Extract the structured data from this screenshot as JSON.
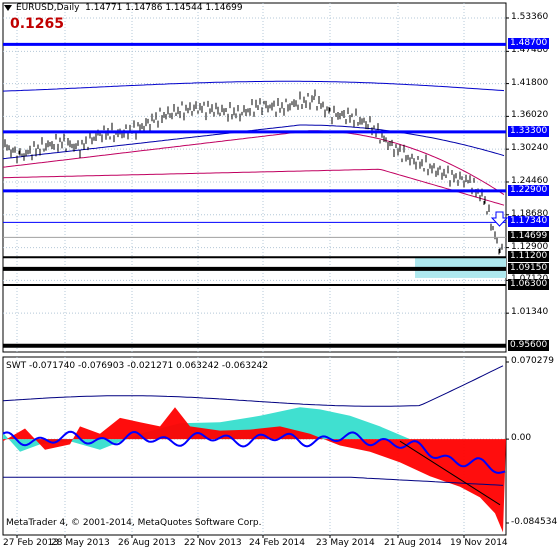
{
  "window": {
    "symbol_header": "EURUSD,Daily",
    "ohlc": [
      "1.14771",
      "1.14786",
      "1.14544",
      "1.14699"
    ],
    "spread_value": "0.1265",
    "arrow_icon": "down-arrow-icon"
  },
  "price_axis": {
    "ticks": [
      "1.53360",
      "1.47480",
      "1.41800",
      "1.36020",
      "1.30240",
      "1.24460",
      "1.18680",
      "1.12900",
      "1.07120",
      "1.01340"
    ]
  },
  "price_levels": [
    {
      "label": "1.48700",
      "kind": "blue-thick",
      "color": "#0000ff"
    },
    {
      "label": "1.33300",
      "kind": "blue-thick",
      "color": "#0000ff"
    },
    {
      "label": "1.22900",
      "kind": "blue-thick",
      "color": "#0000ff"
    },
    {
      "label": "1.17340",
      "kind": "blue-thin",
      "color": "#0000ff"
    },
    {
      "label": "1.14699",
      "kind": "current",
      "color": "#000000"
    },
    {
      "label": "1.11200",
      "kind": "black-thin",
      "color": "#000000"
    },
    {
      "label": "1.09150",
      "kind": "black-thick",
      "color": "#000000"
    },
    {
      "label": "1.06300",
      "kind": "black-thin",
      "color": "#000000"
    },
    {
      "label": "0.95600",
      "kind": "black-thick",
      "color": "#000000"
    }
  ],
  "indicator": {
    "header": "SWT -0.071740 -0.076903 -0.021271 0.063242 -0.063242",
    "axis": {
      "top": "0.070279",
      "zero": "0.00",
      "bottom": "-0.084534"
    }
  },
  "time_axis": [
    "27 Feb 2013",
    "28 May 2013",
    "26 Aug 2013",
    "22 Nov 2013",
    "24 Feb 2014",
    "23 May 2014",
    "21 Aug 2014",
    "19 Nov 2014"
  ],
  "copyright": "MetaTrader 4, © 2001-2014, MetaQuotes Software Corp.",
  "colors": {
    "accent": "#0000ff",
    "red_fill": "#ff0000",
    "cyan_fill": "#40e0d0",
    "spread": "#c00000",
    "zone": "#aee8ee"
  }
}
